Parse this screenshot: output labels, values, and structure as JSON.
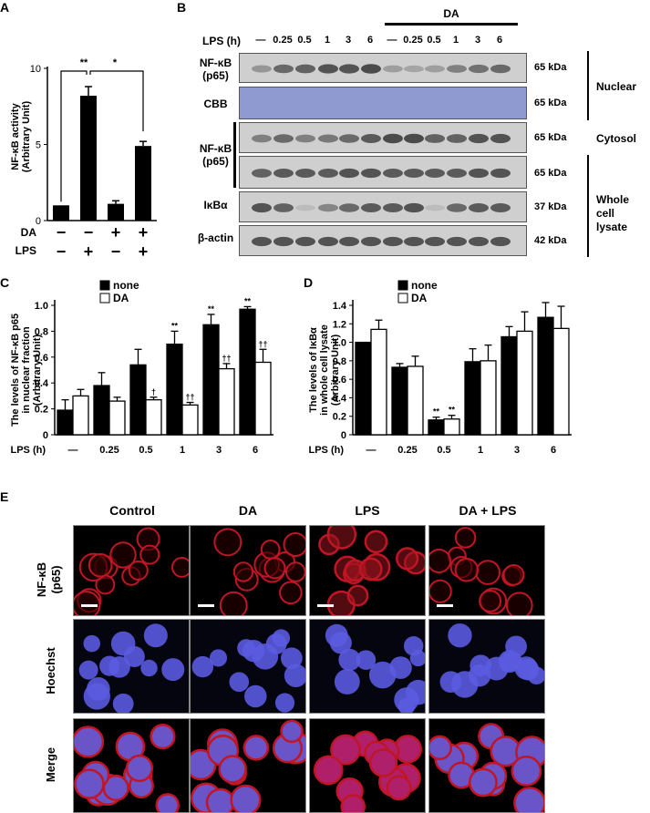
{
  "panel_letters": {
    "a": "A",
    "b": "B",
    "c": "C",
    "d": "D",
    "e": "E"
  },
  "panelA": {
    "ylabel_line1": "NF-κB activity",
    "ylabel_line2": "(Arbitrary Unit)",
    "row_labels": [
      "DA",
      "LPS"
    ],
    "da_signs": [
      "−",
      "−",
      "+",
      "+"
    ],
    "lps_signs": [
      "−",
      "+",
      "−",
      "+"
    ],
    "sig1": "**",
    "sig2": "*"
  },
  "panelB": {
    "da_label": "DA",
    "lps_label": "LPS (h)",
    "lanes": [
      "—",
      "0.25",
      "0.5",
      "1",
      "3",
      "6",
      "—",
      "0.25",
      "0.5",
      "1",
      "3",
      "6"
    ],
    "rows": [
      "NF-κB",
      "(p65)",
      "CBB",
      "NF-κB",
      "(p65)",
      "IκBα",
      "β-actin"
    ],
    "kda": [
      "65 kDa",
      "65 kDa",
      "65 kDa",
      "65 kDa",
      "37 kDa",
      "42 kDa"
    ],
    "fractions": [
      "Nuclear",
      "Cytosol",
      "Whole cell",
      "lysate"
    ]
  },
  "panelE": {
    "columns": [
      "Control",
      "DA",
      "LPS",
      "DA + LPS"
    ],
    "rows": [
      "NF-κB",
      "(p65)",
      "Hoechst",
      "Merge"
    ]
  },
  "chart_data": [
    {
      "type": "bar",
      "panel": "A",
      "categories": [
        "DA− LPS−",
        "DA− LPS+",
        "DA+ LPS−",
        "DA+ LPS+"
      ],
      "values": [
        1.0,
        8.2,
        1.1,
        4.9
      ],
      "errors": [
        0,
        0.6,
        0.2,
        0.3
      ],
      "ylabel": "NF-κB activity (Arbitrary Unit)",
      "ylim": [
        0,
        10
      ],
      "yticks": [
        "0",
        "5",
        "10"
      ]
    },
    {
      "type": "bar",
      "panel": "C",
      "xlabel": "LPS (h)",
      "categories": [
        "—",
        "0.25",
        "0.5",
        "1",
        "3",
        "6"
      ],
      "ylabel_line1": "The levels of NF-κB p65",
      "ylabel_line2": "in nuclear fraction",
      "ylabel_line3": "(Arbitrary Unit)",
      "ylim": [
        0,
        1.0
      ],
      "yticks": [
        "0",
        "0.2",
        "0.4",
        "0.6",
        "0.8",
        "1.0"
      ],
      "legend": [
        "none",
        "DA"
      ],
      "series": [
        {
          "name": "none",
          "values": [
            0.19,
            0.38,
            0.54,
            0.7,
            0.85,
            0.97
          ],
          "errors": [
            0.08,
            0.1,
            0.12,
            0.1,
            0.08,
            0.02
          ],
          "marks": [
            "",
            "",
            "",
            "**",
            "**",
            "**"
          ]
        },
        {
          "name": "DA",
          "values": [
            0.3,
            0.26,
            0.27,
            0.23,
            0.51,
            0.56
          ],
          "errors": [
            0.05,
            0.03,
            0.02,
            0.02,
            0.04,
            0.1
          ],
          "marks": [
            "",
            "",
            "†",
            "††",
            "††",
            "††"
          ]
        }
      ]
    },
    {
      "type": "bar",
      "panel": "D",
      "xlabel": "LPS (h)",
      "categories": [
        "—",
        "0.25",
        "0.5",
        "1",
        "3",
        "6"
      ],
      "ylabel_line1": "The levels of IκBα",
      "ylabel_line2": "in whole cell lysate",
      "ylabel_line3": "(Arbitrary Unit)",
      "ylim": [
        0,
        1.4
      ],
      "yticks": [
        "0",
        "0.2",
        "0.4",
        "0.6",
        "0.8",
        "1.0",
        "1.2",
        "1.4"
      ],
      "legend": [
        "none",
        "DA"
      ],
      "series": [
        {
          "name": "none",
          "values": [
            1.0,
            0.73,
            0.16,
            0.79,
            1.06,
            1.27
          ],
          "errors": [
            0,
            0.04,
            0.03,
            0.14,
            0.11,
            0.16
          ],
          "marks": [
            "",
            "",
            "**",
            "",
            "",
            ""
          ]
        },
        {
          "name": "DA",
          "values": [
            1.14,
            0.74,
            0.17,
            0.8,
            1.12,
            1.15
          ],
          "errors": [
            0.1,
            0.11,
            0.04,
            0.17,
            0.21,
            0.24
          ],
          "marks": [
            "",
            "",
            "**",
            "",
            "",
            ""
          ]
        }
      ]
    }
  ]
}
